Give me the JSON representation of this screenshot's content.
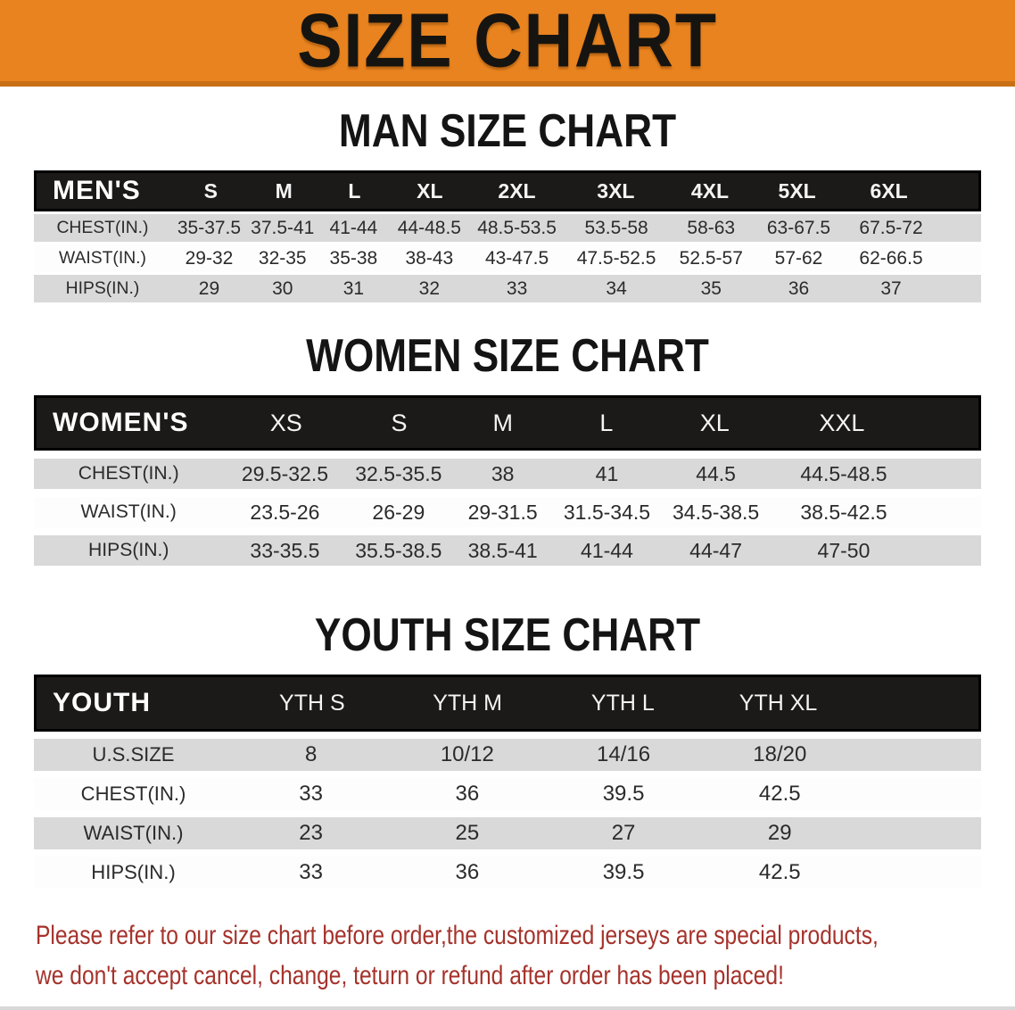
{
  "banner": {
    "title": "SIZE CHART"
  },
  "colors": {
    "banner_bg": "#E8831F",
    "banner_border": "#C96F15",
    "header_bar": "#1C1A18",
    "row_gray": "#D9D9D9",
    "footnote_red": "#A5322B"
  },
  "chart_data": [
    {
      "type": "table",
      "title": "MAN SIZE CHART",
      "corner_label": "MEN'S",
      "columns": [
        "S",
        "M",
        "L",
        "XL",
        "2XL",
        "3XL",
        "4XL",
        "5XL",
        "6XL"
      ],
      "rows": [
        {
          "label": "CHEST(IN.)",
          "values": [
            "35-37.5",
            "37.5-41",
            "41-44",
            "44-48.5",
            "48.5-53.5",
            "53.5-58",
            "58-63",
            "63-67.5",
            "67.5-72"
          ]
        },
        {
          "label": "WAIST(IN.)",
          "values": [
            "29-32",
            "32-35",
            "35-38",
            "38-43",
            "43-47.5",
            "47.5-52.5",
            "52.5-57",
            "57-62",
            "62-66.5"
          ]
        },
        {
          "label": "HIPS(IN.)",
          "values": [
            "29",
            "30",
            "31",
            "32",
            "33",
            "34",
            "35",
            "36",
            "37"
          ]
        }
      ]
    },
    {
      "type": "table",
      "title": "WOMEN SIZE CHART",
      "corner_label": "WOMEN'S",
      "columns": [
        "XS",
        "S",
        "M",
        "L",
        "XL",
        "XXL"
      ],
      "rows": [
        {
          "label": "CHEST(IN.)",
          "values": [
            "29.5-32.5",
            "32.5-35.5",
            "38",
            "41",
            "44.5",
            "44.5-48.5"
          ]
        },
        {
          "label": "WAIST(IN.)",
          "values": [
            "23.5-26",
            "26-29",
            "29-31.5",
            "31.5-34.5",
            "34.5-38.5",
            "38.5-42.5"
          ]
        },
        {
          "label": "HIPS(IN.)",
          "values": [
            "33-35.5",
            "35.5-38.5",
            "38.5-41",
            "41-44",
            "44-47",
            "47-50"
          ]
        }
      ]
    },
    {
      "type": "table",
      "title": "YOUTH SIZE CHART",
      "corner_label": "YOUTH",
      "columns": [
        "YTH S",
        "YTH M",
        "YTH L",
        "YTH XL"
      ],
      "rows": [
        {
          "label": "U.S.SIZE",
          "values": [
            "8",
            "10/12",
            "14/16",
            "18/20"
          ]
        },
        {
          "label": "CHEST(IN.)",
          "values": [
            "33",
            "36",
            "39.5",
            "42.5"
          ]
        },
        {
          "label": "WAIST(IN.)",
          "values": [
            "23",
            "25",
            "27",
            "29"
          ]
        },
        {
          "label": "HIPS(IN.)",
          "values": [
            "33",
            "36",
            "39.5",
            "42.5"
          ]
        }
      ]
    }
  ],
  "footnote": {
    "lines": [
      "Please refer to our size chart before order,the customized jerseys are special products,",
      "we don't accept cancel, change, teturn or refund after order has been placed!"
    ]
  }
}
